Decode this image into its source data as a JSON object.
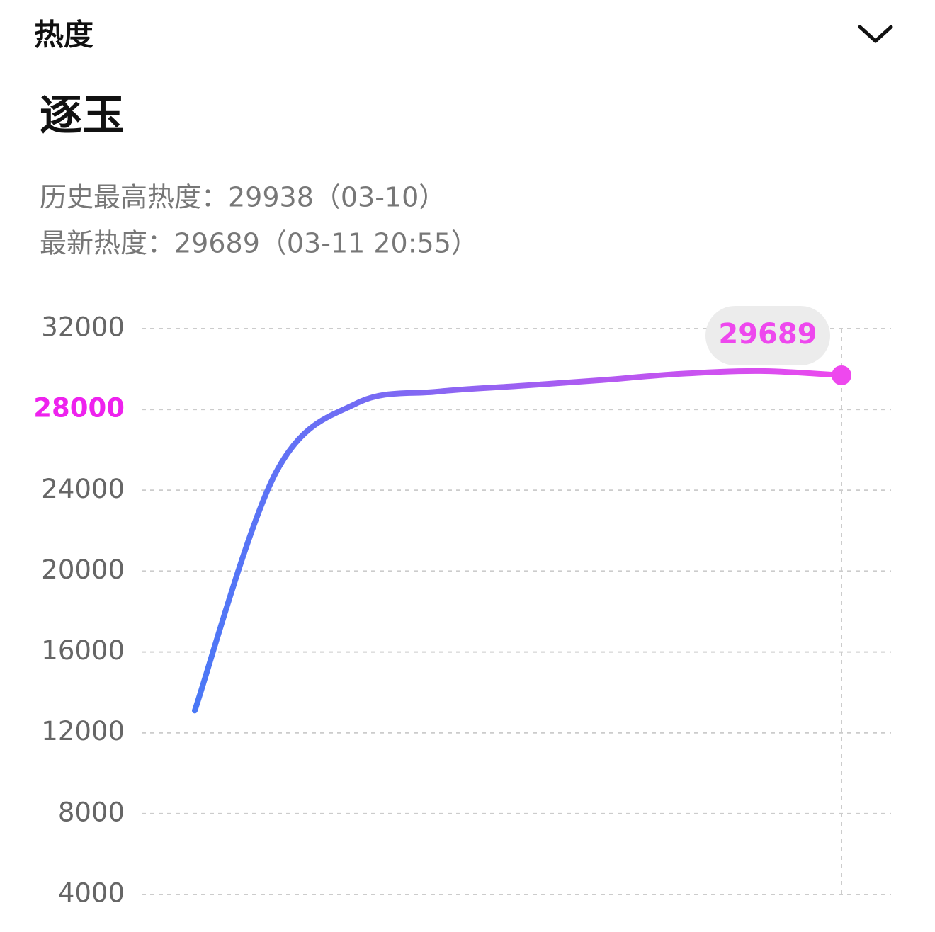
{
  "header": {
    "title": "热度"
  },
  "drama": {
    "title": "逐玉",
    "stats": [
      "历史最高热度：29938（03-10）",
      "最新热度：29689（03-11 20:55）"
    ]
  },
  "chart_data": {
    "type": "line",
    "categories": [
      null,
      null,
      null,
      null,
      null,
      null,
      null,
      null,
      null
    ],
    "series": [
      {
        "color_start": "#4a78f6",
        "color_end": "#ee48ee",
        "values": [
          13100,
          24850,
          28300,
          28880,
          29160,
          29440,
          29760,
          29900,
          29689
        ]
      }
    ],
    "ylim": [
      4000,
      32000
    ],
    "yticks": [
      4000,
      8000,
      12000,
      16000,
      20000,
      24000,
      28000,
      32000
    ],
    "highlighted_ytick": 28000,
    "highlight_color": "#ee22ee",
    "grid": true
  }
}
